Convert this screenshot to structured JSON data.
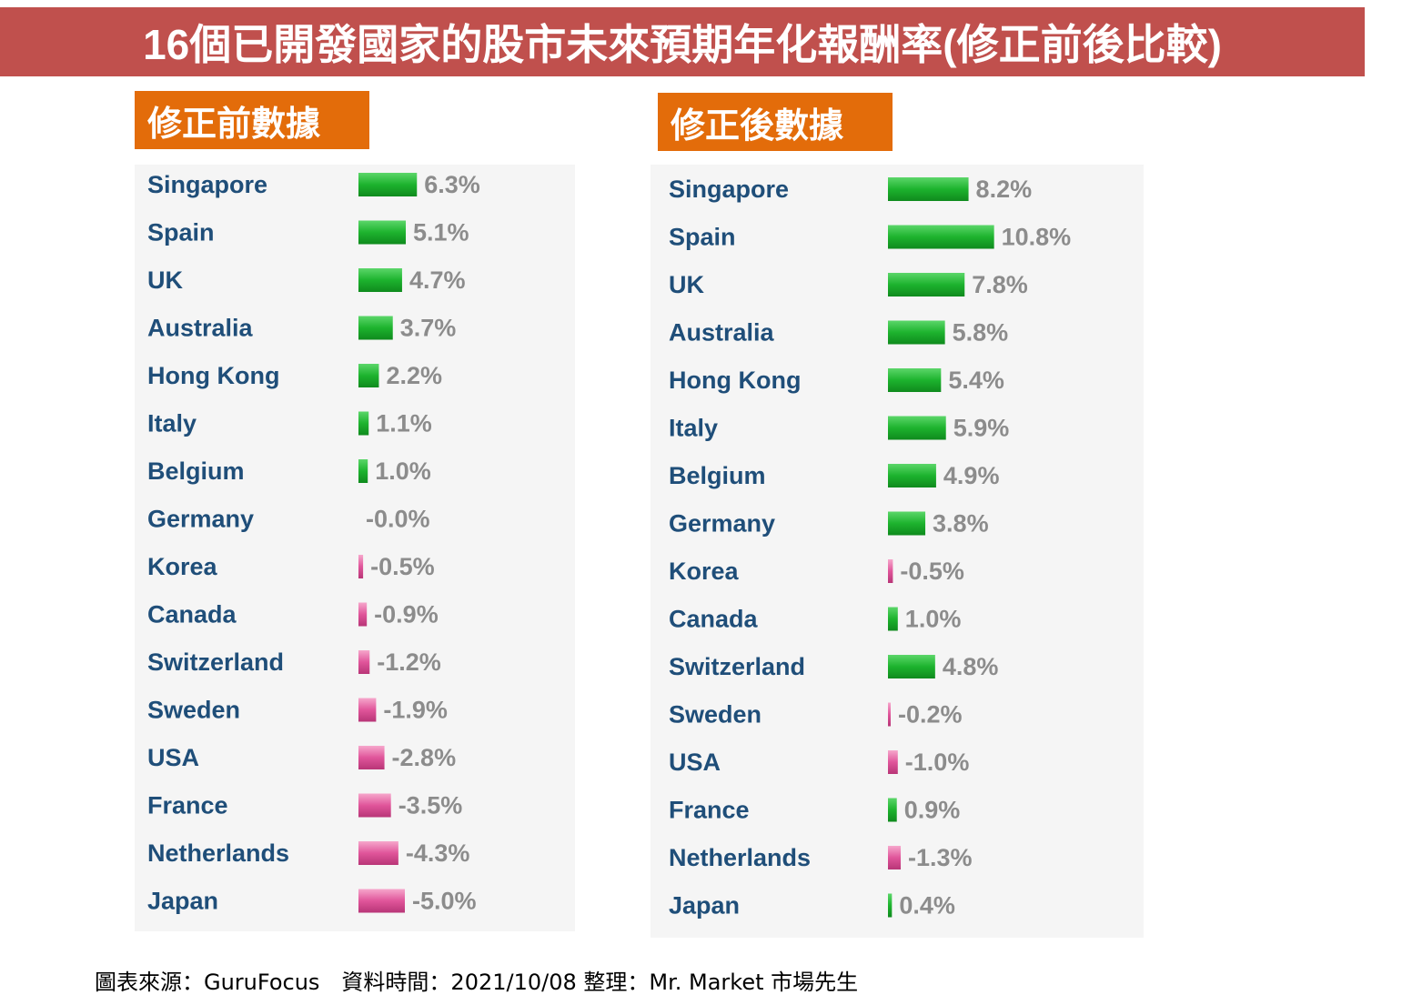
{
  "header": {
    "title": "16個已開發國家的股市未來預期年化報酬率(修正前後比較)"
  },
  "footer": {
    "source": "圖表來源：GuruFocus　資料時間：2021/10/08  整理：Mr. Market 市場先生"
  },
  "colors": {
    "title_bg": "#c0504d",
    "label_bg": "#e36c0a",
    "positive_bar": "#1db32e",
    "negative_bar": "#e0559a",
    "country_text": "#1f4e79",
    "value_text": "#8c8c8c",
    "panel_bg": "#f5f5f5"
  },
  "chart_data": [
    {
      "type": "bar",
      "orientation": "horizontal",
      "title": "修正前數據",
      "unit": "%",
      "categories": [
        "Singapore",
        "Spain",
        "UK",
        "Australia",
        "Hong Kong",
        "Italy",
        "Belgium",
        "Germany",
        "Korea",
        "Canada",
        "Switzerland",
        "Sweden",
        "USA",
        "France",
        "Netherlands",
        "Japan"
      ],
      "values": [
        6.3,
        5.1,
        4.7,
        3.7,
        2.2,
        1.1,
        1.0,
        -0.0,
        -0.5,
        -0.9,
        -1.2,
        -1.9,
        -2.8,
        -3.5,
        -4.3,
        -5.0
      ],
      "value_labels": [
        "6.3%",
        "5.1%",
        "4.7%",
        "3.7%",
        "2.2%",
        "1.1%",
        "1.0%",
        "-0.0%",
        "-0.5%",
        "-0.9%",
        "-1.2%",
        "-1.9%",
        "-2.8%",
        "-3.5%",
        "-4.3%",
        "-5.0%"
      ]
    },
    {
      "type": "bar",
      "orientation": "horizontal",
      "title": "修正後數據",
      "unit": "%",
      "categories": [
        "Singapore",
        "Spain",
        "UK",
        "Australia",
        "Hong Kong",
        "Italy",
        "Belgium",
        "Germany",
        "Korea",
        "Canada",
        "Switzerland",
        "Sweden",
        "USA",
        "France",
        "Netherlands",
        "Japan"
      ],
      "values": [
        8.2,
        10.8,
        7.8,
        5.8,
        5.4,
        5.9,
        4.9,
        3.8,
        -0.5,
        1.0,
        4.8,
        -0.2,
        -1.0,
        0.9,
        -1.3,
        0.4
      ],
      "value_labels": [
        "8.2%",
        "10.8%",
        "7.8%",
        "5.8%",
        "5.4%",
        "5.9%",
        "4.9%",
        "3.8%",
        "-0.5%",
        "1.0%",
        "4.8%",
        "-0.2%",
        "-1.0%",
        "0.9%",
        "-1.3%",
        "0.4%"
      ]
    }
  ]
}
